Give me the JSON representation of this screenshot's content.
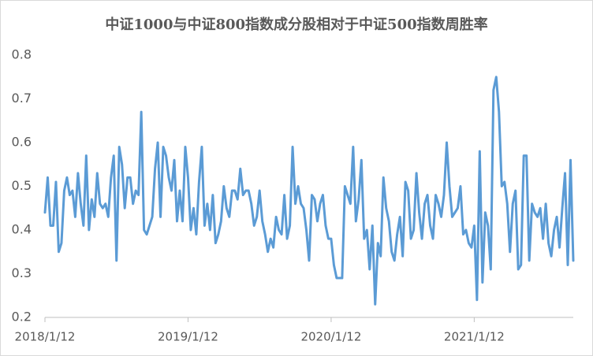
{
  "chart_data": {
    "type": "line",
    "title": "中证1000与中证800指数成分股相对于中证500指数周胜率",
    "categories": [
      "2018/1/12",
      null,
      null,
      null,
      null,
      null,
      null,
      null,
      null,
      null,
      null,
      null,
      null,
      null,
      null,
      null,
      null,
      null,
      null,
      null,
      null,
      null,
      null,
      null,
      null,
      null,
      null,
      null,
      null,
      null,
      null,
      null,
      null,
      null,
      null,
      null,
      null,
      null,
      null,
      null,
      null,
      null,
      null,
      null,
      null,
      null,
      null,
      null,
      null,
      null,
      null,
      null,
      "2019/1/12",
      null,
      null,
      null,
      null,
      null,
      null,
      null,
      null,
      null,
      null,
      null,
      null,
      null,
      null,
      null,
      null,
      null,
      null,
      null,
      null,
      null,
      null,
      null,
      null,
      null,
      null,
      null,
      null,
      null,
      null,
      null,
      null,
      null,
      null,
      null,
      null,
      null,
      null,
      null,
      null,
      null,
      null,
      null,
      null,
      null,
      null,
      null,
      null,
      null,
      null,
      null,
      "2020/1/12",
      null,
      null,
      null,
      null,
      null,
      null,
      null,
      null,
      null,
      null,
      null,
      null,
      null,
      null,
      null,
      null,
      null,
      null,
      null,
      null,
      null,
      null,
      null,
      null,
      null,
      null,
      null,
      null,
      null,
      null,
      null,
      null,
      null,
      null,
      null,
      null,
      null,
      null,
      null,
      null,
      null,
      null,
      null,
      null,
      null,
      null,
      null,
      null,
      null,
      null,
      null,
      "2021/1/12",
      null,
      null,
      null,
      null,
      null,
      null,
      null,
      null,
      null,
      null,
      null,
      null,
      null,
      null,
      null,
      null,
      null,
      null,
      null,
      null,
      null,
      null,
      null,
      null,
      null,
      null,
      null,
      null,
      null,
      null,
      null,
      null,
      null,
      null,
      null,
      null
    ],
    "values": [
      0.44,
      0.52,
      0.41,
      0.41,
      0.51,
      0.35,
      0.37,
      0.49,
      0.52,
      0.48,
      0.49,
      0.43,
      0.53,
      0.46,
      0.41,
      0.57,
      0.4,
      0.47,
      0.43,
      0.53,
      0.46,
      0.45,
      0.46,
      0.43,
      0.52,
      0.57,
      0.33,
      0.59,
      0.55,
      0.45,
      0.52,
      0.52,
      0.46,
      0.49,
      0.48,
      0.67,
      0.4,
      0.39,
      0.41,
      0.43,
      0.54,
      0.6,
      0.43,
      0.59,
      0.57,
      0.52,
      0.49,
      0.56,
      0.42,
      0.49,
      0.42,
      0.59,
      0.52,
      0.4,
      0.45,
      0.39,
      0.51,
      0.59,
      0.41,
      0.46,
      0.4,
      0.48,
      0.37,
      0.39,
      0.42,
      0.5,
      0.45,
      0.43,
      0.49,
      0.49,
      0.47,
      0.54,
      0.48,
      0.49,
      0.49,
      0.46,
      0.41,
      0.43,
      0.49,
      0.42,
      0.39,
      0.35,
      0.38,
      0.36,
      0.43,
      0.4,
      0.39,
      0.48,
      0.38,
      0.41,
      0.59,
      0.46,
      0.5,
      0.46,
      0.45,
      0.4,
      0.33,
      0.48,
      0.47,
      0.42,
      0.46,
      0.48,
      0.41,
      0.38,
      0.38,
      0.32,
      0.29,
      0.29,
      0.29,
      0.5,
      0.48,
      0.46,
      0.59,
      0.42,
      0.47,
      0.56,
      0.38,
      0.4,
      0.31,
      0.41,
      0.23,
      0.37,
      0.34,
      0.52,
      0.45,
      0.42,
      0.35,
      0.33,
      0.39,
      0.43,
      0.34,
      0.51,
      0.49,
      0.38,
      0.4,
      0.53,
      0.44,
      0.38,
      0.46,
      0.48,
      0.41,
      0.38,
      0.48,
      0.46,
      0.43,
      0.48,
      0.6,
      0.5,
      0.43,
      0.44,
      0.45,
      0.5,
      0.39,
      0.4,
      0.37,
      0.36,
      0.41,
      0.24,
      0.58,
      0.28,
      0.44,
      0.41,
      0.31,
      0.72,
      0.75,
      0.67,
      0.5,
      0.51,
      0.46,
      0.35,
      0.46,
      0.49,
      0.31,
      0.32,
      0.57,
      0.57,
      0.33,
      0.46,
      0.44,
      0.43,
      0.45,
      0.38,
      0.46,
      0.37,
      0.34,
      0.4,
      0.43,
      0.36,
      0.45,
      0.53,
      0.32,
      0.56,
      0.33
    ],
    "color": "#5b9bd5",
    "ylim": [
      0.2,
      0.8
    ],
    "yticks": [
      0.2,
      0.3,
      0.4,
      0.5,
      0.6,
      0.7,
      0.8
    ],
    "grid": false
  }
}
